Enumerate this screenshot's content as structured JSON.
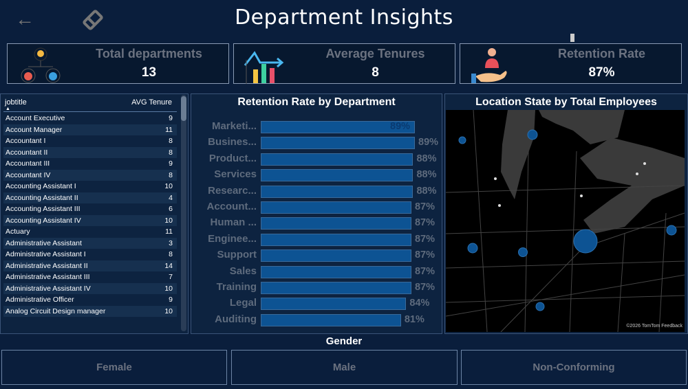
{
  "header": {
    "title": "Department Insights",
    "back_icon": "arrow-left-icon",
    "eraser_icon": "eraser-icon"
  },
  "kpis": [
    {
      "label": "Total departments",
      "value": "13",
      "icon": "org-chart-icon"
    },
    {
      "label": "Average Tenures",
      "value": "8",
      "icon": "bar-chart-trend-icon"
    },
    {
      "label": "Retention Rate",
      "value": "87%",
      "icon": "hand-person-icon"
    }
  ],
  "table": {
    "columns": [
      "jobtitle",
      "AVG Tenure"
    ],
    "rows": [
      [
        "Account Executive",
        "9"
      ],
      [
        "Account Manager",
        "11"
      ],
      [
        "Accountant I",
        "8"
      ],
      [
        "Accountant II",
        "8"
      ],
      [
        "Accountant III",
        "9"
      ],
      [
        "Accountant IV",
        "8"
      ],
      [
        "Accounting Assistant I",
        "10"
      ],
      [
        "Accounting Assistant II",
        "4"
      ],
      [
        "Accounting Assistant III",
        "6"
      ],
      [
        "Accounting Assistant IV",
        "10"
      ],
      [
        "Actuary",
        "11"
      ],
      [
        "Administrative Assistant",
        "3"
      ],
      [
        "Administrative Assistant I",
        "8"
      ],
      [
        "Administrative Assistant II",
        "14"
      ],
      [
        "Administrative Assistant III",
        "7"
      ],
      [
        "Administrative Assistant IV",
        "10"
      ],
      [
        "Administrative Officer",
        "9"
      ],
      [
        "Analog Circuit Design manager",
        "10"
      ]
    ]
  },
  "chart_data": {
    "type": "bar",
    "title": "Retention Rate by Department",
    "orientation": "horizontal",
    "categories": [
      "Marketi...",
      "Busines...",
      "Product...",
      "Services",
      "Researc...",
      "Account...",
      "Human ...",
      "Enginee...",
      "Support",
      "Sales",
      "Training",
      "Legal",
      "Auditing"
    ],
    "values": [
      89,
      89,
      88,
      88,
      88,
      87,
      87,
      87,
      87,
      87,
      87,
      84,
      81
    ],
    "labels": [
      "89%",
      "89%",
      "88%",
      "88%",
      "88%",
      "87%",
      "87%",
      "87%",
      "87%",
      "87%",
      "87%",
      "84%",
      "81%"
    ],
    "xlim": [
      0,
      89
    ]
  },
  "map": {
    "title": "Location State by Total Employees",
    "attribution": "©2026 TomTom  Feedback",
    "bubble_color": "#0d5393"
  },
  "gender": {
    "title": "Gender",
    "options": [
      "Female",
      "Male",
      "Non-Conforming"
    ]
  }
}
